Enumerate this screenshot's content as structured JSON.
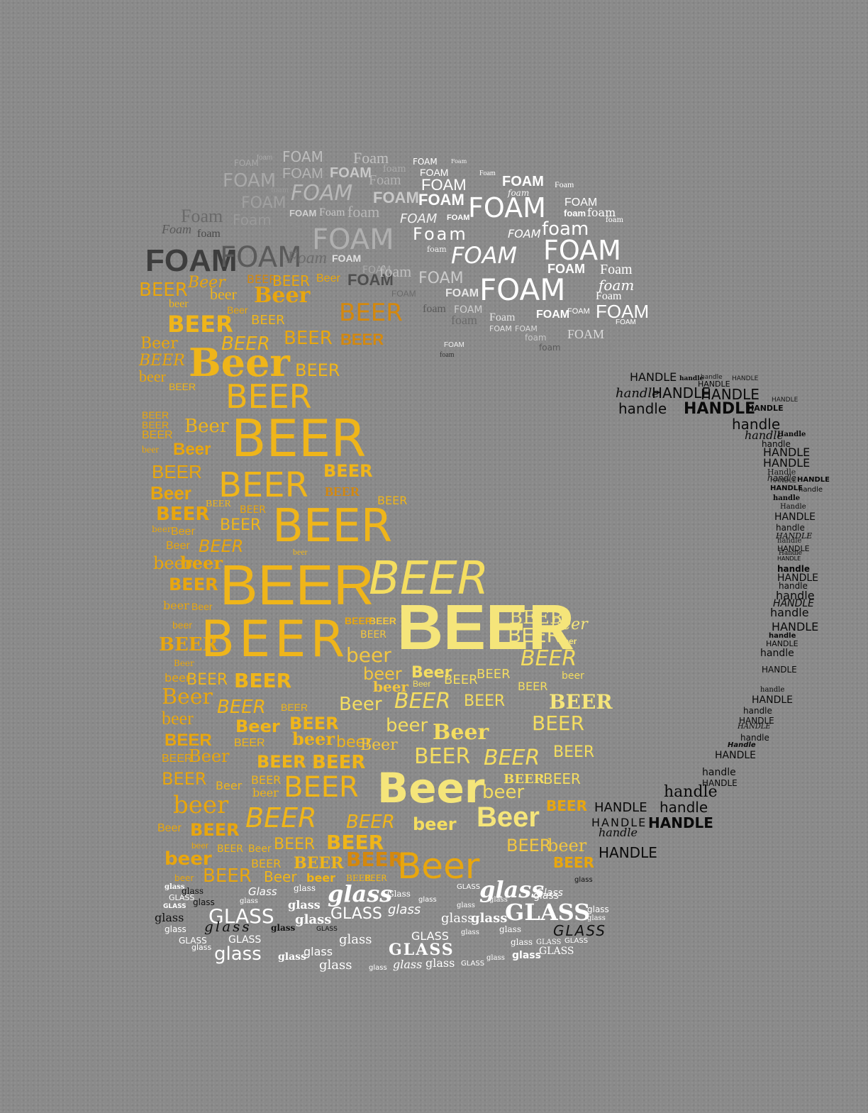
{
  "colors": {
    "background": "#8a8a8a",
    "foam_dark": [
      "#3d3d3d",
      "#5a5a5a",
      "#7a7a7a",
      "#9c9c9c",
      "#b8b8b8"
    ],
    "foam_light": [
      "#ffffff",
      "#f2f2f2",
      "#e6e6e6",
      "#d6d6d6"
    ],
    "beer": [
      "#e8a60e",
      "#efb51a",
      "#e09a10",
      "#f2c640",
      "#f4dd60",
      "#f5e57a",
      "#d4880d",
      "#f6c92f"
    ],
    "glass": [
      "#ffffff",
      "#f0f0f0",
      "#111111",
      "#202020",
      "#dcdcdc"
    ],
    "handle": [
      "#0a0a0a",
      "#1a1a1a",
      "#222222",
      "#303030"
    ]
  },
  "words": {
    "foam": [
      "FOAM",
      "FOAM",
      "Foam",
      "FOAM",
      "Foam",
      "Foam",
      "Foam",
      "FOAM",
      "foam",
      "FOAM",
      "FOAM",
      "Foam",
      "FOAM",
      "FOAM",
      "Foam",
      "foam",
      "FOAM",
      "foam",
      "foam",
      "FOAM",
      "FOAM",
      "foam",
      "FOAM",
      "Foam",
      "FOAM",
      "FOAM",
      "FOAM",
      "FOAM",
      "foam",
      "FOAM",
      "foam",
      "FOAM",
      "FOAM",
      "FOAM",
      "Foam",
      "FOAM",
      "FOAM",
      "Foam",
      "FOAM",
      "foam",
      "Foam",
      "FOAM",
      "FOAM",
      "foam",
      "foam",
      "Foam",
      "FOAM",
      "FOAM",
      "foam",
      "FOAM",
      "FOAM",
      "foam",
      "Foam",
      "FOAM",
      "FOAM",
      "foam",
      "FOAM",
      "Foam",
      "FOAM",
      "FOAM",
      "Foam",
      "foam",
      "FOAM",
      "FOAM",
      "FOAM",
      "foam",
      "FOAM",
      "FOAM",
      "foam",
      "FOAM",
      "FOAM",
      "FOAM",
      "foam",
      "foam",
      "FOAM"
    ],
    "beer": [
      "BEER",
      "Beer",
      "BEER",
      "beer",
      "Beer",
      "BEER",
      "BEER",
      "Beer",
      "BEER",
      "BEER",
      "BEER",
      "BEER",
      "Beer",
      "BEER",
      "beer",
      "BEER",
      "Beer",
      "BEER",
      "Beer",
      "BEER",
      "beer",
      "BEER",
      "BEER",
      "BEER",
      "Beer",
      "BEER",
      "Beer",
      "BEER",
      "BEER",
      "beer",
      "BEER",
      "Beer",
      "BEER",
      "BEER",
      "BEER",
      "BEER",
      "beer",
      "BEER",
      "Beer",
      "BEER",
      "BEER",
      "Beer",
      "beer",
      "BEER",
      "BEER",
      "BEER",
      "beer",
      "BEER",
      "beer",
      "Beer",
      "beer",
      "beer",
      "BEER",
      "BEER",
      "Beer",
      "BEER",
      "beer",
      "BEER",
      "Beer",
      "BEER",
      "beer",
      "BEER",
      "BEER",
      "BEER",
      "Beer",
      "BEER",
      "BEER",
      "Beer",
      "BEER",
      "beer",
      "BEER",
      "BEER",
      "BEER",
      "beer",
      "BEER",
      "Beer",
      "beer",
      "BEER",
      "beer",
      "BEER",
      "BEER",
      "Beer",
      "BEER",
      "beer",
      "beer",
      "BEER",
      "Beer",
      "BEER",
      "BEER",
      "BEER",
      "beer",
      "BEER",
      "BEER",
      "Beer",
      "beer",
      "BEER",
      "BEER",
      "BEER",
      "beer",
      "BEER",
      "beer",
      "BEER",
      "BEER",
      "beer",
      "BEER",
      "BEER",
      "BEER",
      "Beer",
      "beer",
      "BEER",
      "Beer",
      "BEER",
      "Beer",
      "BEER",
      "BEER",
      "beer",
      "Beer",
      "BEER",
      "BEER",
      "BEER",
      "beer",
      "Beer",
      "BEER",
      "Beer",
      "BEER",
      "BEER",
      "BEER",
      "Beer",
      "beer",
      "BEER",
      "BEER",
      "Beer",
      "BEER",
      "beer",
      "Beer",
      "BEER",
      "beer",
      "BEER"
    ],
    "glass": [
      "glass",
      "GLASS",
      "glass",
      "Glass",
      "glass",
      "glass",
      "GLASS",
      "glass",
      "GLASS",
      "glass",
      "GLASS",
      "glass",
      "glass",
      "glass",
      "GLASS",
      "glass",
      "glass",
      "glass",
      "GLASS",
      "glass",
      "glass",
      "glass",
      "glass",
      "Glass",
      "glass",
      "GLASS",
      "glass",
      "GLASS",
      "glass",
      "glass",
      "glass",
      "GLASS",
      "glass",
      "glass",
      "GLASS",
      "glass",
      "Glass",
      "glass",
      "GLASS",
      "glass",
      "glass",
      "GLASS",
      "GLASS",
      "glass",
      "glass",
      "glass",
      "GLASS",
      "glass",
      "glass",
      "GLASS",
      "glass",
      "glass",
      "glass",
      "glass",
      "GLASS",
      "glass"
    ],
    "handle": [
      "HANDLE",
      "handle",
      "HANDLE",
      "handle",
      "HANDLE",
      "handle",
      "HANDLE",
      "HANDLE",
      "handle",
      "HANDLE",
      "HANDLE",
      "handle",
      "HANDLE",
      "handle",
      "Handle",
      "HANDLE",
      "handle",
      "HANDLE",
      "handle",
      "Handle",
      "HANDLE",
      "handle",
      "HANDLE",
      "HANDLE",
      "Handle",
      "handle",
      "HANDLE",
      "handle",
      "HANDLE",
      "handle",
      "HANDLE",
      "HANDLE",
      "handle",
      "Handle",
      "HANDLE",
      "handle",
      "handle",
      "HANDLE",
      "handle",
      "HANDLE",
      "handle",
      "HANDLE",
      "handle",
      "HANDLE",
      "handle",
      "HANDLE",
      "handle",
      "HANDLE",
      "HANDLE",
      "handle",
      "Handle",
      "HANDLE",
      "handle",
      "HANDLE",
      "handle",
      "HANDLE",
      "handle",
      "HANDLE",
      "HANDLE",
      "handle",
      "HANDLE"
    ]
  }
}
